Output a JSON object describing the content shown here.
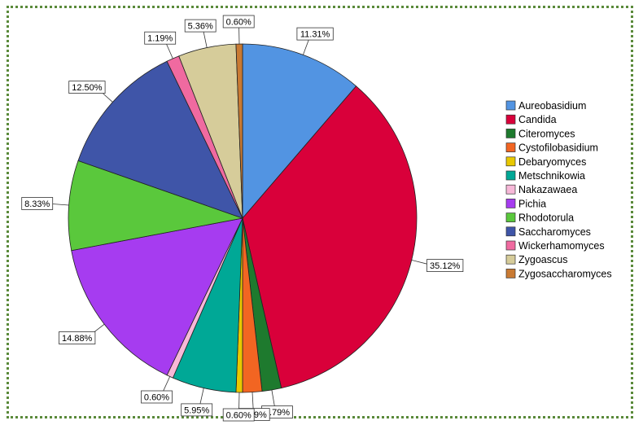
{
  "chart_data": {
    "type": "pie",
    "categories": [
      "Aureobasidium",
      "Candida",
      "Citeromyces",
      "Cystofilobasidium",
      "Debaryomyces",
      "Metschnikowia",
      "Nakazawaea",
      "Pichia",
      "Rhodotorula",
      "Saccharomyces",
      "Wickerhamomyces",
      "Zygoascus",
      "Zygosaccharomyces"
    ],
    "values": [
      11.31,
      35.12,
      1.79,
      1.79,
      0.6,
      5.95,
      0.6,
      14.88,
      8.33,
      12.5,
      1.19,
      5.36,
      0.6
    ],
    "labels": [
      "11.31%",
      "35.12%",
      "1.79%",
      "1.79%",
      "0.60%",
      "5.95%",
      "0.60%",
      "14.88%",
      "8.33%",
      "12.50%",
      "1.19%",
      "5.36%",
      "0.60%"
    ],
    "colors": [
      "#5294e2",
      "#d9003a",
      "#1e7a2e",
      "#f26522",
      "#e8c800",
      "#00a896",
      "#f7b8d8",
      "#a63cf0",
      "#5ac83c",
      "#3f55a8",
      "#f06aa0",
      "#d6cc9a",
      "#c97a33"
    ],
    "legend_position": "right",
    "title": "",
    "start_angle": "top",
    "direction": "clockwise"
  }
}
